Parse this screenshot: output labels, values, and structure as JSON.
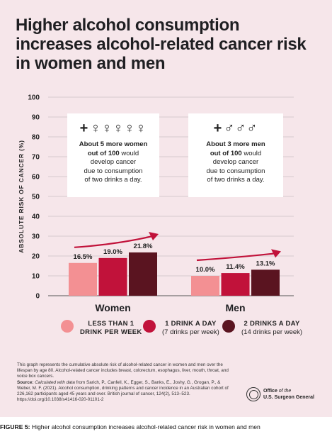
{
  "title": "Higher alcohol consumption increases alcohol-related cancer risk in women and men",
  "chart_data": {
    "type": "bar",
    "ylabel": "ABSOLUTE RISK OF CANCER (%)",
    "ylim": [
      0,
      100
    ],
    "yticks": [
      0,
      10,
      20,
      30,
      40,
      50,
      60,
      70,
      80,
      90,
      100
    ],
    "categories": [
      "Women",
      "Men"
    ],
    "series": [
      {
        "name": "LESS THAN 1 DRINK PER WEEK",
        "values": [
          16.5,
          10.0
        ],
        "labels": [
          "16.5%",
          "10.0%"
        ],
        "color": "#f39093"
      },
      {
        "name": "1 DRINK A DAY",
        "values": [
          19.0,
          11.4
        ],
        "labels": [
          "19.0%",
          "11.4%"
        ],
        "color": "#c1123a"
      },
      {
        "name": "2 DRINKS A DAY",
        "values": [
          21.8,
          13.1
        ],
        "labels": [
          "21.8%",
          "13.1%"
        ],
        "color": "#5a1420"
      }
    ],
    "grid": true,
    "legend": "bottom"
  },
  "callouts": [
    {
      "line1": "About 5 more women",
      "line2": "out of 100",
      "line2_rest": " would",
      "line3": "develop cancer",
      "line4": "due to consumption",
      "line5": "of two drinks a day.",
      "icon": "woman-figure-icon",
      "icon_count": 5
    },
    {
      "line1": "About 3 more men",
      "line2": "out of 100",
      "line2_rest": " would",
      "line3": "develop cancer",
      "line4": "due to consumption",
      "line5": "of two drinks a day.",
      "icon": "man-figure-icon",
      "icon_count": 3
    }
  ],
  "legend": [
    {
      "main": "LESS THAN 1",
      "main2": "DRINK PER WEEK",
      "sub": ""
    },
    {
      "main": "1 DRINK A DAY",
      "main2": "",
      "sub": "(7 drinks per week)"
    },
    {
      "main": "2 DRINKS A DAY",
      "main2": "",
      "sub": "(14 drinks per week)"
    }
  ],
  "footnote": {
    "text": "This graph represents the cumulative absolute risk of alcohol-related cancer in women and men over the lifespan by age 80. Alcohol-related cancer includes breast, colorectum, esophagus, liver, mouth, throat, and voice box cancers.",
    "source_label": "Source:",
    "source_italic": "Calculated with data",
    "source_rest": " from Sarich, P., Canfell, K., Egger, S., Banks, E., Joshy, G., Grogan, P., & Weber, M. F. (2021). Alcohol consumption, drinking patterns and cancer incidence in an Australian cohort of 226,162 participants aged 45 years and over. British journal of cancer, 124(2), 513–523. https://doi.org/10.1038/s41416-020-01101-2"
  },
  "office": {
    "line1a": "Office",
    "line1b": " of the",
    "line2": "U.S. Surgeon General"
  },
  "figure_caption": {
    "label": "FIGURE 5:",
    "text": " Higher alcohol consumption increases alcohol-related cancer risk in women and men"
  }
}
